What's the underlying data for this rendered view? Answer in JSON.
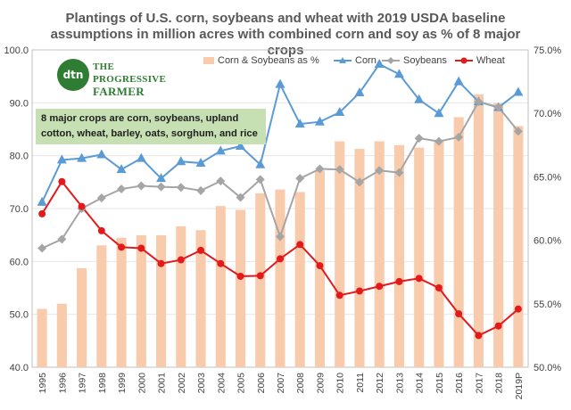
{
  "title_line1": "Plantings of U.S. corn, soybeans and wheat with 2019 USDA baseline",
  "title_line2": "assumptions in million acres with combined corn and soy as %  of 8 major crops",
  "logo": {
    "badge": "dtn",
    "line1": "THE PROGRESSIVE",
    "line2": "FARMER"
  },
  "note": "8 major crops are corn, soybeans, upland cotton, wheat, barley, oats, sorghum, and rice",
  "colors": {
    "bars": "#f8cbad",
    "corn": "#5b9bd5",
    "soybeans": "#a5a5a5",
    "wheat": "#e31a1c"
  },
  "chart_data": {
    "type": "bar+line",
    "categories": [
      "1995",
      "1996",
      "1997",
      "1998",
      "1999",
      "2000",
      "2001",
      "2002",
      "2003",
      "2004",
      "2005",
      "2006",
      "2007",
      "2008",
      "2009",
      "2010",
      "2011",
      "2012",
      "2013",
      "2014",
      "2015",
      "2016",
      "2017",
      "2018",
      "2019P"
    ],
    "left_axis": {
      "min": 40,
      "max": 100,
      "ticks": [
        "40.0",
        "50.0",
        "60.0",
        "70.0",
        "80.0",
        "90.0",
        "100.0"
      ]
    },
    "right_axis": {
      "min": 50,
      "max": 75,
      "ticks": [
        "50.0%",
        "55.0%",
        "60.0%",
        "65.0%",
        "70.0%",
        "75.0%"
      ]
    },
    "series": [
      {
        "name": "Corn & Soybeans as %",
        "axis": "right",
        "style": "bar",
        "values": [
          54.6,
          55.0,
          57.8,
          59.6,
          60.2,
          60.4,
          60.4,
          61.1,
          60.8,
          62.7,
          62.4,
          63.7,
          64.0,
          63.8,
          65.5,
          67.8,
          67.2,
          67.8,
          67.5,
          67.3,
          67.9,
          69.7,
          71.5,
          70.8,
          69.0
        ]
      },
      {
        "name": "Corn",
        "axis": "left",
        "style": "line-triangle",
        "values": [
          71.2,
          79.2,
          79.5,
          80.2,
          77.4,
          79.5,
          75.7,
          78.9,
          78.6,
          80.9,
          81.8,
          78.3,
          93.5,
          86.0,
          86.4,
          88.2,
          91.9,
          97.3,
          95.4,
          90.6,
          88.0,
          94.0,
          90.2,
          89.1,
          92.0
        ]
      },
      {
        "name": "Soybeans",
        "axis": "left",
        "style": "line-diamond",
        "values": [
          62.5,
          64.2,
          70.0,
          72.0,
          73.7,
          74.3,
          74.1,
          74.0,
          73.4,
          75.2,
          72.1,
          75.5,
          64.7,
          75.7,
          77.5,
          77.4,
          75.0,
          77.2,
          76.8,
          83.3,
          82.7,
          83.5,
          90.2,
          89.2,
          84.6
        ]
      },
      {
        "name": "Wheat",
        "axis": "left",
        "style": "line-circle",
        "values": [
          69.0,
          75.1,
          70.4,
          65.8,
          62.7,
          62.5,
          59.6,
          60.3,
          62.1,
          59.6,
          57.2,
          57.3,
          60.5,
          63.2,
          59.2,
          53.6,
          54.4,
          55.3,
          56.2,
          56.8,
          55.0,
          50.1,
          46.0,
          47.8,
          51.0
        ]
      }
    ]
  }
}
